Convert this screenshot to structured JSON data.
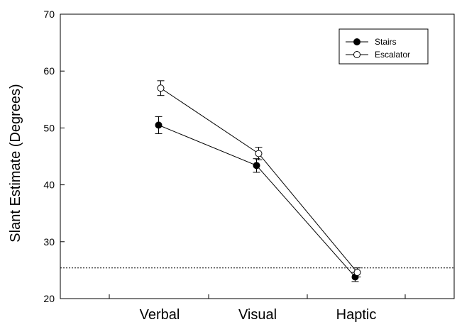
{
  "chart_data": {
    "type": "line",
    "categories": [
      "Verbal",
      "Visual",
      "Haptic"
    ],
    "ylabel": "Slant Estimate (Degrees)",
    "xlabel": "",
    "ylim": [
      20,
      70
    ],
    "yticks": [
      20,
      30,
      40,
      50,
      60,
      70
    ],
    "grid": false,
    "legend_position": "top-right",
    "reference_line": 25.4,
    "series": [
      {
        "name": "Stairs",
        "marker": "filled-circle",
        "color": "#000000",
        "values": [
          50.5,
          43.4,
          23.8
        ],
        "errors": [
          1.5,
          1.2,
          0.8
        ]
      },
      {
        "name": "Escalator",
        "marker": "open-circle",
        "color": "#000000",
        "values": [
          57.0,
          45.5,
          24.6
        ],
        "errors": [
          1.3,
          1.1,
          0.8
        ]
      }
    ]
  }
}
